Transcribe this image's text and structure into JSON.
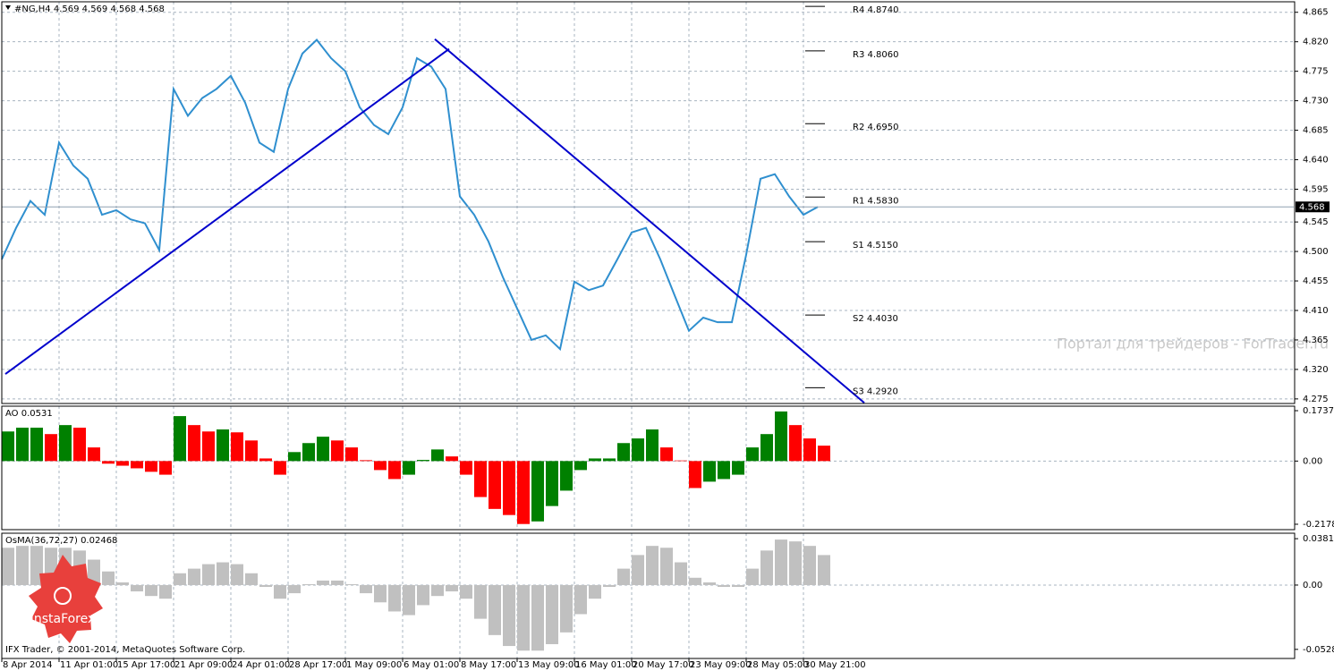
{
  "header": "#NG,H4  4.569 4.569 4.568 4.568",
  "watermark": "Портал для трейдеров - ForTrader.ru",
  "copyright": "IFX Trader, © 2001-2014, MetaQuotes Software Corp.",
  "logo": "InstaForex",
  "chart_data": [
    {
      "type": "line",
      "color": "#2f8fcf",
      "x": [
        0,
        4,
        8,
        12,
        16,
        20,
        24,
        28,
        32,
        36,
        40,
        44,
        48,
        52,
        56,
        60,
        64,
        68,
        72,
        76,
        80,
        84,
        88,
        92,
        96,
        100,
        104,
        108,
        112,
        116,
        120,
        124,
        128,
        132,
        136,
        140,
        144,
        148,
        152,
        156,
        160,
        164,
        168,
        172,
        176,
        180,
        184,
        188,
        192,
        196,
        200,
        204,
        208,
        212,
        216,
        220,
        224,
        228
      ],
      "values": [
        4.488,
        4.536,
        4.577,
        4.556,
        4.666,
        4.631,
        4.611,
        4.556,
        4.563,
        4.549,
        4.543,
        4.502,
        4.748,
        4.707,
        4.734,
        4.748,
        4.768,
        4.727,
        4.666,
        4.652,
        4.748,
        4.802,
        4.823,
        4.795,
        4.775,
        4.72,
        4.693,
        4.679,
        4.72,
        4.795,
        4.782,
        4.748,
        4.584,
        4.556,
        4.515,
        4.461,
        4.413,
        4.365,
        4.372,
        4.351,
        4.454,
        4.441,
        4.448,
        4.488,
        4.529,
        4.536,
        4.488,
        4.433,
        4.379,
        4.399,
        4.392,
        4.392,
        4.495,
        4.611,
        4.618,
        4.584,
        4.556,
        4.568
      ],
      "xlim": [
        0,
        361
      ],
      "xticks": [
        {
          "value": 0,
          "label": "8 Apr 2014"
        },
        {
          "value": 16,
          "label": "11 Apr 01:00"
        },
        {
          "value": 32,
          "label": "15 Apr 17:00"
        },
        {
          "value": 48,
          "label": "21 Apr 09:00"
        },
        {
          "value": 64,
          "label": "24 Apr 01:00"
        },
        {
          "value": 80,
          "label": "28 Apr 17:00"
        },
        {
          "value": 96,
          "label": "1 May 09:00"
        },
        {
          "value": 112,
          "label": "6 May 01:00"
        },
        {
          "value": 128,
          "label": "8 May 17:00"
        },
        {
          "value": 144,
          "label": "13 May 09:00"
        },
        {
          "value": 160,
          "label": "16 May 01:00"
        },
        {
          "value": 176,
          "label": "20 May 17:00"
        },
        {
          "value": 192,
          "label": "23 May 09:00"
        },
        {
          "value": 208,
          "label": "28 May 05:00"
        },
        {
          "value": 224,
          "label": "30 May 21:00"
        }
      ],
      "ylim": [
        4.268,
        4.881
      ],
      "yticks": [
        4.865,
        {
          "value": 4.82,
          "label": "4.820"
        },
        4.775,
        {
          "value": 4.73,
          "label": "4.730"
        },
        4.685,
        {
          "value": 4.64,
          "label": "4.640"
        },
        4.595,
        4.545,
        {
          "value": 4.5,
          "label": "4.500"
        },
        4.455,
        {
          "value": 4.41,
          "label": "4.410"
        },
        4.365,
        {
          "value": 4.32,
          "label": "4.320"
        },
        4.275
      ],
      "grid": true,
      "current_price": 4.568,
      "levels": [
        {
          "label": "R4 4.8740",
          "value": 4.874
        },
        {
          "label": "R3 4.8060",
          "value": 4.806
        },
        {
          "label": "R2 4.6950",
          "value": 4.695
        },
        {
          "label": "R1 4.5830",
          "value": 4.583
        },
        {
          "label": "S1 4.5150",
          "value": 4.515
        },
        {
          "label": "S2 4.4030",
          "value": 4.403
        },
        {
          "label": "S3 4.2920",
          "value": 4.292
        }
      ],
      "trendlines": [
        {
          "x": [
            1,
            125
          ],
          "values": [
            4.313,
            4.809
          ]
        },
        {
          "x": [
            121,
            241
          ],
          "values": [
            4.824,
            4.269
          ]
        }
      ],
      "trendline_color": "#0000cc"
    },
    {
      "type": "bar",
      "title": "AO 0.0531",
      "up_color": "#008000",
      "down_color": "#ff0000",
      "values": [
        0.102,
        0.115,
        0.115,
        0.093,
        0.124,
        0.115,
        0.047,
        -0.009,
        -0.016,
        -0.025,
        -0.037,
        -0.047,
        0.155,
        0.124,
        0.102,
        0.109,
        0.099,
        0.071,
        0.009,
        -0.047,
        0.031,
        0.062,
        0.084,
        0.071,
        0.047,
        0.003,
        -0.031,
        -0.062,
        -0.047,
        0.004,
        0.04,
        0.016,
        -0.047,
        -0.124,
        -0.165,
        -0.186,
        -0.217,
        -0.208,
        -0.155,
        -0.102,
        -0.031,
        0.009,
        0.009,
        0.062,
        0.078,
        0.109,
        0.047,
        0.002,
        -0.093,
        -0.071,
        -0.062,
        -0.047,
        0.047,
        0.093,
        0.171,
        0.124,
        0.078,
        0.0531
      ],
      "ylim": [
        -0.2364,
        0.1892
      ],
      "yticks": [
        0.1737,
        {
          "value": 0,
          "label": "0.00"
        },
        -0.2178
      ]
    },
    {
      "type": "bar",
      "title": "OsMA(36,72,27) 0.02468",
      "color": "#c0c0c0",
      "values": [
        0.0307,
        0.0322,
        0.0322,
        0.0307,
        0.0307,
        0.0284,
        0.0209,
        0.0112,
        0.0022,
        -0.0052,
        -0.009,
        -0.0112,
        0.0097,
        0.0135,
        0.0172,
        0.0187,
        0.0172,
        0.0097,
        -0.0015,
        -0.0112,
        -0.0067,
        0.0007,
        0.0037,
        0.0037,
        0.0007,
        -0.0067,
        -0.0142,
        -0.0217,
        -0.0247,
        -0.0165,
        -0.009,
        -0.0052,
        -0.0112,
        -0.0277,
        -0.0411,
        -0.0501,
        -0.0539,
        -0.0539,
        -0.0486,
        -0.0389,
        -0.0239,
        -0.0112,
        -0.0015,
        0.0135,
        0.0247,
        0.0322,
        0.0307,
        0.0187,
        0.006,
        0.0022,
        -0.0015,
        -0.0015,
        0.0135,
        0.0284,
        0.0374,
        0.0359,
        0.0322,
        0.02468
      ],
      "ylim": [
        -0.06035,
        0.04263
      ],
      "yticks": [
        0.03814,
        {
          "value": 0,
          "label": "0.00"
        },
        -0.05287
      ]
    }
  ]
}
